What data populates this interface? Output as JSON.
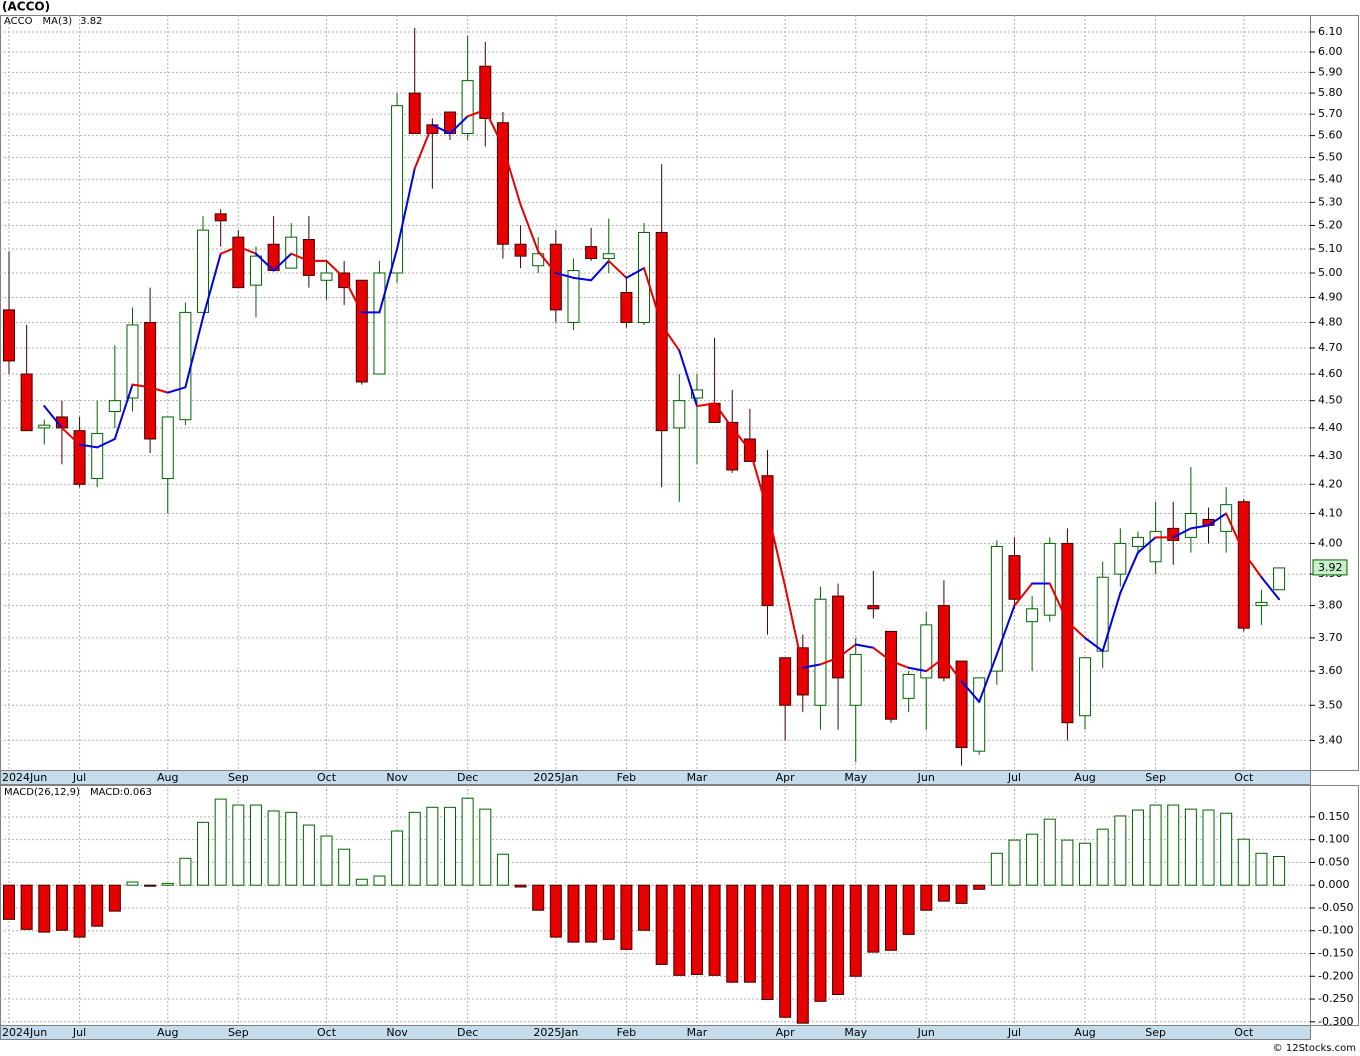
{
  "chart_data": [
    {
      "type": "candlestick",
      "title": "(ACCO)",
      "name": "ACCO",
      "log_scale": true,
      "grid": true,
      "up_color": "#006400",
      "down_color": "#e60000",
      "categories": [
        "2024Jun",
        null,
        null,
        null,
        "Jul",
        null,
        null,
        null,
        null,
        "Aug",
        null,
        null,
        null,
        "Sep",
        null,
        null,
        null,
        null,
        "Oct",
        null,
        null,
        null,
        "Nov",
        null,
        null,
        null,
        "Dec",
        null,
        null,
        null,
        null,
        "2025Jan",
        null,
        null,
        null,
        "Feb",
        null,
        null,
        null,
        "Mar",
        null,
        null,
        null,
        null,
        "Apr",
        null,
        null,
        null,
        "May",
        null,
        null,
        null,
        "Jun",
        null,
        null,
        null,
        null,
        "Jul",
        null,
        null,
        null,
        "Aug",
        null,
        null,
        null,
        "Sep",
        null,
        null,
        null,
        null,
        "Oct",
        null,
        null
      ],
      "open": [
        4.85,
        4.6,
        4.4,
        4.44,
        4.39,
        4.22,
        4.46,
        4.51,
        4.8,
        4.22,
        4.43,
        4.84,
        5.25,
        5.15,
        4.95,
        5.12,
        5.02,
        5.14,
        4.97,
        5.0,
        4.97,
        4.6,
        5.0,
        5.8,
        5.65,
        5.71,
        5.61,
        5.93,
        5.66,
        5.12,
        5.03,
        5.12,
        4.8,
        5.11,
        5.06,
        4.92,
        4.8,
        5.17,
        4.4,
        4.51,
        4.49,
        4.42,
        4.36,
        4.23,
        3.64,
        3.67,
        3.5,
        3.83,
        3.5,
        3.8,
        3.72,
        3.52,
        3.58,
        3.8,
        3.63,
        3.37,
        3.6,
        3.96,
        3.75,
        3.77,
        4.0,
        3.47,
        3.66,
        3.9,
        3.99,
        3.94,
        4.05,
        4.02,
        4.08,
        4.04,
        4.14,
        3.8,
        3.85
      ],
      "high": [
        5.09,
        4.79,
        4.43,
        4.5,
        4.44,
        4.5,
        4.71,
        4.86,
        4.94,
        4.44,
        4.88,
        5.24,
        5.27,
        5.18,
        5.11,
        5.24,
        5.21,
        5.24,
        5.05,
        5.05,
        4.97,
        5.05,
        5.8,
        6.12,
        5.68,
        5.71,
        6.08,
        6.05,
        5.71,
        5.2,
        5.15,
        5.18,
        5.06,
        5.19,
        5.23,
        4.98,
        5.21,
        5.47,
        4.6,
        4.6,
        4.74,
        4.54,
        4.47,
        4.32,
        3.64,
        3.71,
        3.86,
        3.87,
        3.7,
        3.91,
        3.72,
        3.6,
        3.78,
        3.88,
        3.63,
        3.58,
        4.01,
        4.02,
        3.83,
        4.02,
        4.05,
        3.64,
        3.94,
        4.05,
        4.04,
        4.14,
        4.14,
        4.26,
        4.12,
        4.19,
        4.15,
        3.85,
        3.92
      ],
      "low": [
        4.6,
        4.39,
        4.34,
        4.27,
        4.19,
        4.19,
        4.4,
        4.46,
        4.31,
        4.1,
        4.41,
        4.84,
        5.11,
        4.94,
        4.82,
        5.01,
        5.02,
        4.94,
        4.89,
        4.87,
        4.56,
        4.6,
        4.96,
        5.61,
        5.36,
        5.58,
        5.58,
        5.55,
        5.06,
        5.02,
        5.0,
        4.8,
        4.77,
        5.05,
        5.0,
        4.78,
        4.79,
        4.19,
        4.14,
        4.27,
        4.42,
        4.24,
        4.28,
        3.71,
        3.4,
        3.48,
        3.43,
        3.43,
        3.34,
        3.76,
        3.45,
        3.48,
        3.43,
        3.57,
        3.33,
        3.36,
        3.56,
        3.79,
        3.6,
        3.75,
        3.4,
        3.43,
        3.61,
        3.86,
        3.97,
        3.9,
        3.93,
        3.97,
        4.0,
        3.97,
        3.72,
        3.74,
        3.85
      ],
      "close": [
        4.65,
        4.39,
        4.41,
        4.4,
        4.2,
        4.38,
        4.5,
        4.79,
        4.36,
        4.44,
        4.84,
        5.18,
        5.22,
        4.94,
        5.07,
        5.01,
        5.15,
        4.99,
        5.0,
        4.94,
        4.57,
        5.0,
        5.74,
        5.61,
        5.61,
        5.61,
        5.86,
        5.68,
        5.12,
        5.07,
        5.08,
        4.85,
        5.01,
        5.06,
        5.08,
        4.8,
        5.17,
        4.39,
        4.5,
        4.54,
        4.42,
        4.25,
        4.28,
        3.8,
        3.5,
        3.53,
        3.82,
        3.58,
        3.65,
        3.79,
        3.46,
        3.59,
        3.74,
        3.58,
        3.38,
        3.58,
        3.99,
        3.82,
        3.79,
        4.0,
        3.45,
        3.64,
        3.89,
        4.0,
        4.02,
        4.04,
        4.01,
        4.1,
        4.06,
        4.13,
        3.73,
        3.81,
        3.92
      ],
      "ma": {
        "name": "MA(3)",
        "up_color": "#0000e0",
        "down_color": "#e60000",
        "values": [
          null,
          null,
          4.48,
          4.4,
          4.34,
          4.33,
          4.36,
          4.56,
          4.55,
          4.53,
          4.55,
          4.82,
          5.08,
          5.11,
          5.08,
          5.01,
          5.08,
          5.05,
          5.05,
          4.98,
          4.84,
          4.84,
          5.1,
          5.45,
          5.65,
          5.61,
          5.69,
          5.72,
          5.55,
          5.29,
          5.09,
          5.0,
          4.98,
          4.97,
          5.05,
          4.98,
          5.02,
          4.79,
          4.69,
          4.48,
          4.49,
          4.4,
          4.32,
          4.11,
          3.86,
          3.61,
          3.62,
          3.64,
          3.68,
          3.67,
          3.63,
          3.61,
          3.6,
          3.64,
          3.57,
          3.51,
          3.65,
          3.8,
          3.87,
          3.87,
          3.75,
          3.7,
          3.66,
          3.84,
          3.97,
          4.02,
          4.02,
          4.05,
          4.06,
          4.1,
          3.97,
          3.89,
          3.82
        ]
      },
      "ylim": [
        3.318,
        6.186
      ],
      "yticks": [
        {
          "value": 3.4,
          "label": "3.40"
        },
        {
          "value": 3.5,
          "label": "3.50"
        },
        {
          "value": 3.6,
          "label": "3.60"
        },
        {
          "value": 3.7,
          "label": "3.70"
        },
        {
          "value": 3.8,
          "label": "3.80"
        },
        {
          "value": 3.9,
          "label": "3.90"
        },
        {
          "value": 4.0,
          "label": "4.00"
        },
        {
          "value": 4.1,
          "label": "4.10"
        },
        {
          "value": 4.2,
          "label": "4.20"
        },
        {
          "value": 4.3,
          "label": "4.30"
        },
        {
          "value": 4.4,
          "label": "4.40"
        },
        {
          "value": 4.5,
          "label": "4.50"
        },
        {
          "value": 4.6,
          "label": "4.60"
        },
        {
          "value": 4.7,
          "label": "4.70"
        },
        {
          "value": 4.8,
          "label": "4.80"
        },
        {
          "value": 4.9,
          "label": "4.90"
        },
        {
          "value": 5.0,
          "label": "5.00"
        },
        {
          "value": 5.1,
          "label": "5.10"
        },
        {
          "value": 5.2,
          "label": "5.20"
        },
        {
          "value": 5.3,
          "label": "5.30"
        },
        {
          "value": 5.4,
          "label": "5.40"
        },
        {
          "value": 5.5,
          "label": "5.50"
        },
        {
          "value": 5.6,
          "label": "5.60"
        },
        {
          "value": 5.7,
          "label": "5.70"
        },
        {
          "value": 5.8,
          "label": "5.80"
        },
        {
          "value": 5.9,
          "label": "5.90"
        },
        {
          "value": 6.0,
          "label": "6.00"
        },
        {
          "value": 6.1,
          "label": "6.10"
        }
      ]
    },
    {
      "type": "bar",
      "legend_label": "MACD(26,12,9)",
      "value_prefix": "MACD:",
      "grid": true,
      "up_color": "#006400",
      "down_color": "#e60000",
      "credit": "© 12Stocks.com",
      "categories": [
        "2024Jun",
        null,
        null,
        null,
        "Jul",
        null,
        null,
        null,
        null,
        "Aug",
        null,
        null,
        null,
        "Sep",
        null,
        null,
        null,
        null,
        "Oct",
        null,
        null,
        null,
        "Nov",
        null,
        null,
        null,
        "Dec",
        null,
        null,
        null,
        null,
        "2025Jan",
        null,
        null,
        null,
        "Feb",
        null,
        null,
        null,
        "Mar",
        null,
        null,
        null,
        null,
        "Apr",
        null,
        null,
        null,
        "May",
        null,
        null,
        null,
        "Jun",
        null,
        null,
        null,
        null,
        "Jul",
        null,
        null,
        null,
        "Aug",
        null,
        null,
        null,
        "Sep",
        null,
        null,
        null,
        null,
        "Oct",
        null,
        null
      ],
      "values": [
        -0.075,
        -0.097,
        -0.103,
        -0.099,
        -0.114,
        -0.09,
        -0.057,
        0.007,
        -0.002,
        0.004,
        0.059,
        0.138,
        0.189,
        0.176,
        0.176,
        0.163,
        0.16,
        0.132,
        0.108,
        0.079,
        0.013,
        0.02,
        0.119,
        0.16,
        0.171,
        0.171,
        0.191,
        0.167,
        0.068,
        -0.004,
        -0.055,
        -0.114,
        -0.125,
        -0.125,
        -0.119,
        -0.141,
        -0.099,
        -0.174,
        -0.198,
        -0.196,
        -0.198,
        -0.213,
        -0.213,
        -0.251,
        -0.29,
        -0.303,
        -0.255,
        -0.24,
        -0.2,
        -0.147,
        -0.143,
        -0.108,
        -0.055,
        -0.035,
        -0.04,
        -0.009,
        0.07,
        0.099,
        0.112,
        0.145,
        0.099,
        0.092,
        0.123,
        0.152,
        0.165,
        0.176,
        0.176,
        0.167,
        0.165,
        0.158,
        0.101,
        0.07,
        0.063
      ],
      "ylim": [
        -0.307,
        0.22
      ],
      "yticks": [
        {
          "value": 0.15,
          "label": "0.150"
        },
        {
          "value": 0.1,
          "label": "0.100"
        },
        {
          "value": 0.05,
          "label": "0.050"
        },
        {
          "value": 0,
          "label": "0.000"
        },
        {
          "value": -0.05,
          "label": "-0.050"
        },
        {
          "value": -0.1,
          "label": "-0.100"
        },
        {
          "value": -0.15,
          "label": "-0.150"
        },
        {
          "value": -0.2,
          "label": "-0.200"
        },
        {
          "value": -0.25,
          "label": "-0.250"
        },
        {
          "value": -0.3,
          "label": "-0.300"
        }
      ]
    }
  ]
}
